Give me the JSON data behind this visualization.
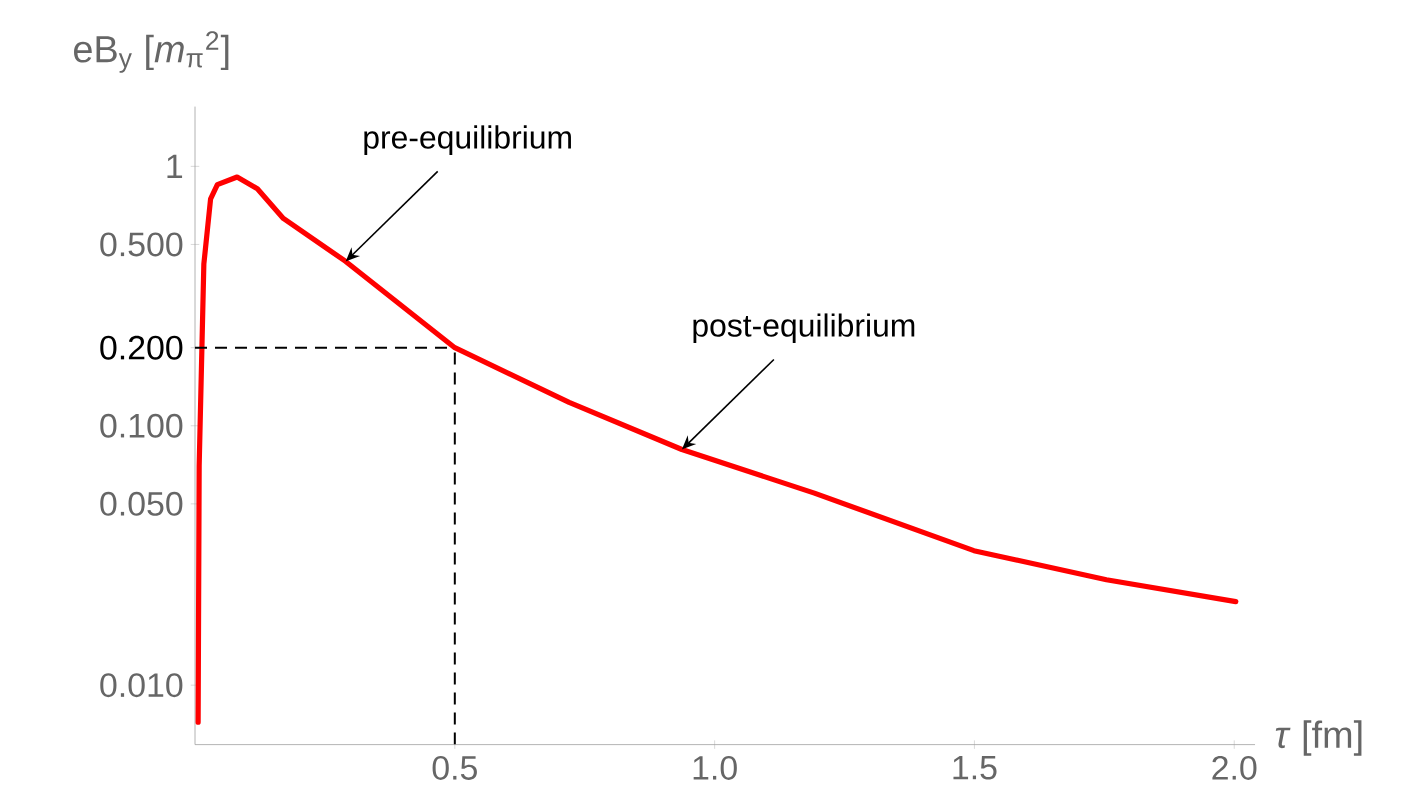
{
  "chart_data": {
    "type": "line",
    "xlabel": "*τ* [fm]",
    "ylabel": "eB$_{y}$ [*m*$_{π}$$^{2}$]",
    "log": "y",
    "grid": false,
    "line_style": "solid",
    "marker": "none",
    "xlim": [
      0,
      2.04
    ],
    "ylim": [
      0.0059,
      1.7
    ],
    "xticks": [
      0.5,
      {
        "value": 1,
        "label": "1.0"
      },
      1.5,
      {
        "value": 2,
        "label": "2.0"
      }
    ],
    "yticks": [
      {
        "value": 0.01,
        "label": "0.010"
      },
      {
        "value": 0.05,
        "label": "0.050"
      },
      {
        "value": 0.1,
        "label": "0.100"
      },
      {
        "value": 0.2,
        "label": "0.200"
      },
      {
        "value": 0.5,
        "label": "0.500"
      },
      1
    ],
    "series": [
      {
        "color": "#ff0000",
        "x": [
          0.006,
          0.008,
          0.017,
          0.03,
          0.043,
          0.081,
          0.12,
          0.17,
          0.29,
          0.5,
          0.72,
          0.937,
          1.192,
          1.499,
          1.754,
          2.003
        ],
        "values": [
          0.0072,
          0.07,
          0.42,
          0.75,
          0.85,
          0.91,
          0.82,
          0.63,
          0.43,
          0.2,
          0.123,
          0.081,
          0.055,
          0.033,
          0.0255,
          0.021
        ]
      }
    ],
    "ref_lines": [
      {
        "axis": "y",
        "value": 0.2,
        "color": "#000000",
        "line_style": "dashed"
      },
      {
        "axis": "x",
        "value": 0.5,
        "color": "#000000",
        "line_style": "dashed"
      }
    ],
    "annotations": [
      {
        "text": "pre-equilibrium",
        "x": 0.29,
        "y": 0.43
      },
      {
        "text": "post-equilibrium",
        "x": 0.937,
        "y": 0.081
      }
    ]
  }
}
